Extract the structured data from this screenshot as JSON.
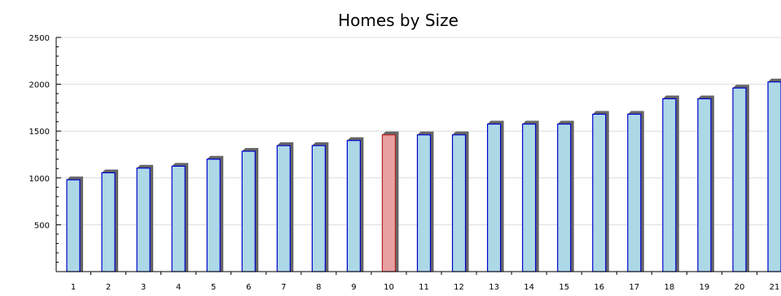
{
  "chart_data": {
    "type": "bar",
    "title": "Homes by Size",
    "xlabel": "",
    "ylabel": "",
    "categories": [
      "1",
      "2",
      "3",
      "4",
      "5",
      "6",
      "7",
      "8",
      "9",
      "10",
      "11",
      "12",
      "13",
      "14",
      "15",
      "16",
      "17",
      "18",
      "19",
      "20",
      "21"
    ],
    "values": [
      980,
      1055,
      1105,
      1125,
      1200,
      1285,
      1345,
      1345,
      1400,
      1460,
      1460,
      1460,
      1575,
      1575,
      1575,
      1680,
      1680,
      1845,
      1845,
      1960,
      2025
    ],
    "highlight_category": "10",
    "ylim": [
      0,
      2500
    ],
    "yticks": [
      "500",
      "1000",
      "1500",
      "2000",
      "2500"
    ],
    "grid": true,
    "colors": {
      "bar_fill": "#add8e6",
      "bar_stroke": "#0000cd",
      "highlight_fill": "#e8a0a0",
      "highlight_stroke": "#b22222",
      "shadow": "#666666"
    }
  }
}
